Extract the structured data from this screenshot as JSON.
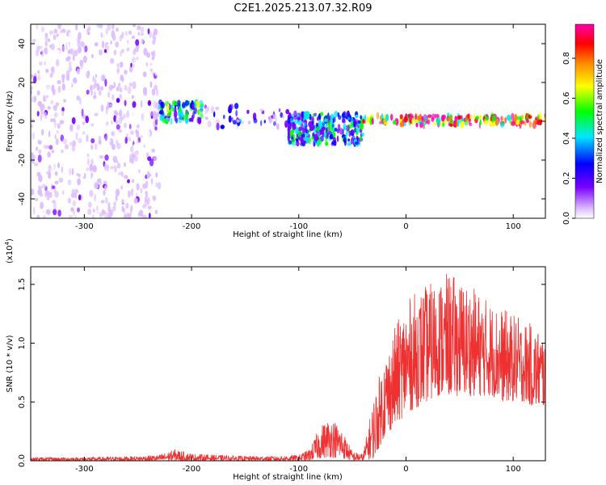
{
  "title": "C2E1.2025.213.07.32.R09",
  "chart_data": [
    {
      "type": "heatmap",
      "xlabel": "Height of straight line (km)",
      "ylabel": "Frequency (Hz)",
      "xlim": [
        -350,
        130
      ],
      "ylim": [
        -50,
        50
      ],
      "x_ticks": [
        -300,
        -200,
        -100,
        0,
        100
      ],
      "y_ticks": [
        -40,
        -20,
        0,
        20,
        40
      ],
      "colorbar": {
        "label": "Normalized spectral amplitude",
        "range": [
          0,
          0.97
        ],
        "ticks": [
          "0.0",
          "0.2",
          "0.4",
          "0.6",
          "0.8"
        ],
        "colors": [
          "#ffffff",
          "#dcbcff",
          "#7a00ff",
          "#0000ff",
          "#00e6ff",
          "#00ff00",
          "#ffff00",
          "#ff8800",
          "#ff0000",
          "#ff00aa"
        ]
      },
      "description_bands": [
        {
          "x": [
            -350,
            -230
          ],
          "freq": [
            -50,
            50
          ],
          "amplitude": 0.15
        },
        {
          "x": [
            -230,
            -120
          ],
          "freq": [
            -50,
            50
          ],
          "amplitude": 0.06
        },
        {
          "x": [
            -230,
            -190
          ],
          "freq": [
            0,
            10
          ],
          "amplitude": 0.45
        },
        {
          "x": [
            -190,
            -110
          ],
          "freq": [
            -3,
            8
          ],
          "amplitude": 0.3
        },
        {
          "x": [
            -110,
            -40
          ],
          "freq": [
            -12,
            4
          ],
          "amplitude": 0.4
        },
        {
          "x": [
            -40,
            130
          ],
          "freq": [
            -2,
            3
          ],
          "amplitude": 0.85
        }
      ]
    },
    {
      "type": "line",
      "xlabel": "Height of straight line (km)",
      "ylabel": "SNR (10 * v/v)",
      "y_multiplier": "(x10",
      "y_multiplier_exp": "4",
      "y_multiplier_close": ")",
      "xlim": [
        -350,
        130
      ],
      "ylim": [
        0,
        1.65
      ],
      "x_ticks": [
        -300,
        -200,
        -100,
        0,
        100
      ],
      "y_ticks": [
        "0.0",
        "0.5",
        "1.0",
        "1.5"
      ],
      "color": "#ee3030",
      "envelope": {
        "x": [
          -350,
          -300,
          -250,
          -230,
          -215,
          -200,
          -150,
          -120,
          -100,
          -90,
          -80,
          -70,
          -60,
          -50,
          -40,
          -30,
          -20,
          -10,
          0,
          10,
          20,
          30,
          40,
          50,
          60,
          70,
          80,
          90,
          100,
          110,
          120,
          130
        ],
        "low": [
          0.0,
          0.0,
          0.0,
          0.0,
          0.0,
          0.0,
          0.0,
          0.0,
          0.0,
          0.0,
          0.02,
          0.03,
          0.02,
          0.0,
          0.0,
          0.02,
          0.2,
          0.3,
          0.4,
          0.45,
          0.5,
          0.55,
          0.55,
          0.55,
          0.55,
          0.55,
          0.55,
          0.5,
          0.5,
          0.5,
          0.45,
          0.45
        ],
        "high": [
          0.03,
          0.03,
          0.04,
          0.05,
          0.1,
          0.06,
          0.04,
          0.04,
          0.05,
          0.1,
          0.3,
          0.38,
          0.28,
          0.08,
          0.06,
          0.55,
          0.9,
          1.15,
          1.35,
          1.45,
          1.5,
          1.55,
          1.6,
          1.55,
          1.5,
          1.42,
          1.35,
          1.3,
          1.25,
          1.2,
          1.15,
          1.1
        ]
      }
    }
  ]
}
